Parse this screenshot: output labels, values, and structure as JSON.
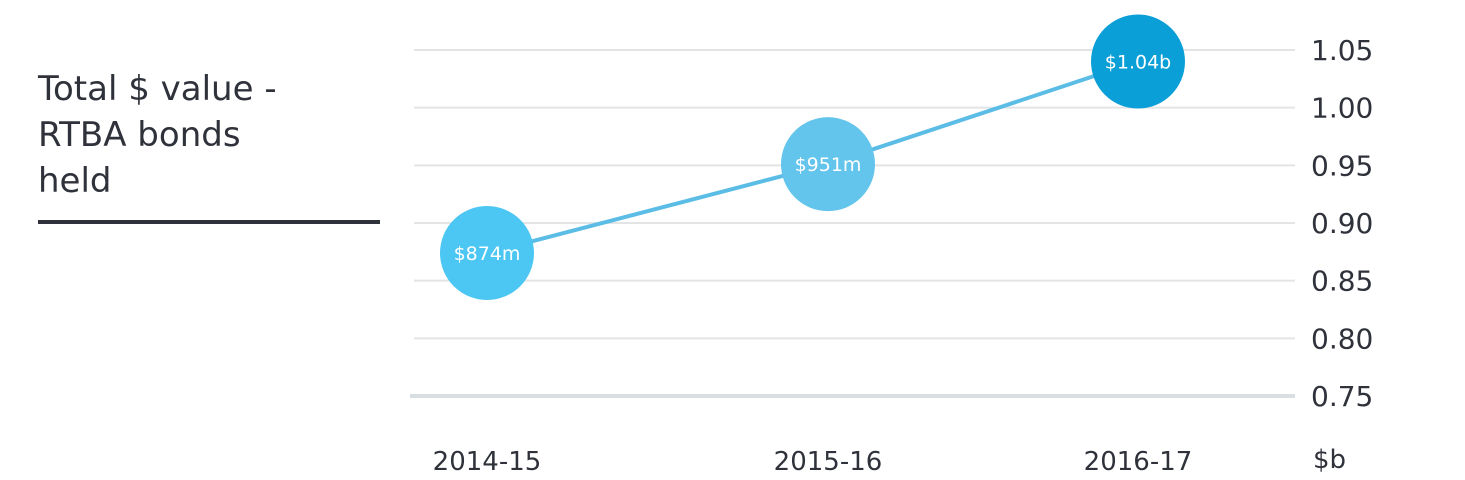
{
  "title": "Total $ value -\nRTBA bonds\nheld",
  "unit_label": "$b",
  "colors": {
    "point_light": "#4cc6f2",
    "point_mid": "#63c4ec",
    "point_dark": "#0b9fd8",
    "line": "#5bbde6",
    "grid": "#e2e4e6",
    "baseline": "#d7dfe0",
    "text": "#2f323a"
  },
  "chart_data": {
    "type": "line",
    "categories": [
      "2014-15",
      "2015-16",
      "2016-17"
    ],
    "values": [
      0.874,
      0.951,
      1.04
    ],
    "data_labels": [
      "$874m",
      "$951m",
      "$1.04b"
    ],
    "ylim": [
      0.75,
      1.05
    ],
    "yticks": [
      "1.05",
      "1.00",
      "0.95",
      "0.90",
      "0.85",
      "0.80",
      "0.75"
    ],
    "ylabel": "$b",
    "grid": true
  }
}
